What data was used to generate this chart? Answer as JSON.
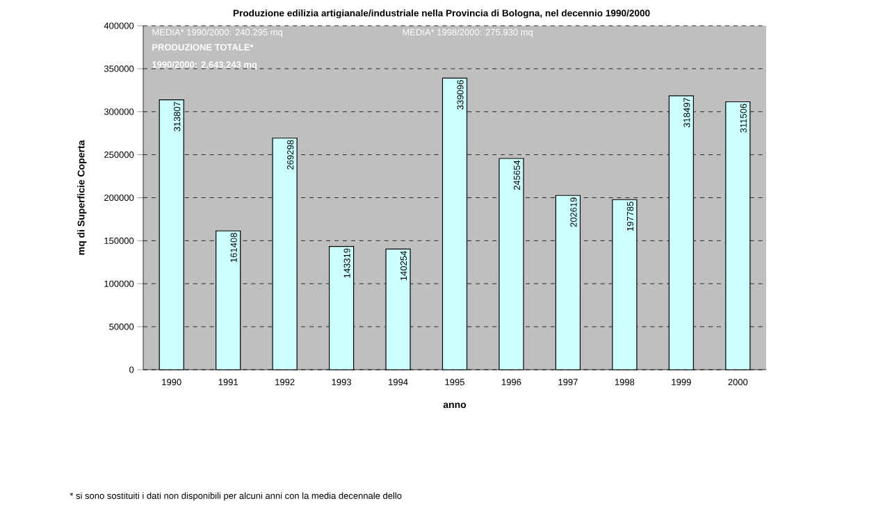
{
  "chart_data": {
    "type": "bar",
    "title": "Produzione edilizia artigianale/industriale nella Provincia di Bologna, nel decennio 1990/2000",
    "xlabel": "anno",
    "ylabel": "mq di Superficie Coperta",
    "categories": [
      "1990",
      "1991",
      "1992",
      "1993",
      "1994",
      "1995",
      "1996",
      "1997",
      "1998",
      "1999",
      "2000"
    ],
    "values": [
      313807,
      161408,
      269298,
      143319,
      140254,
      339096,
      245654,
      202619,
      197785,
      318497,
      311506
    ],
    "color": "#ccffff",
    "ylim": [
      0,
      400000
    ],
    "yticks": [
      0,
      50000,
      100000,
      150000,
      200000,
      250000,
      300000,
      350000,
      400000
    ],
    "grid": "y",
    "data_labels": true,
    "annotations": [
      "MEDIA* 1990/2000: 240.295 mq",
      "MEDIA* 1998/2000: 275.930 mq",
      "PRODUZIONE TOTALE* 1990/2000: 2.643.243 mq",
      "* si sono sostituiti i dati non disponibili  per alcuni anni con la media decennale dello"
    ]
  }
}
